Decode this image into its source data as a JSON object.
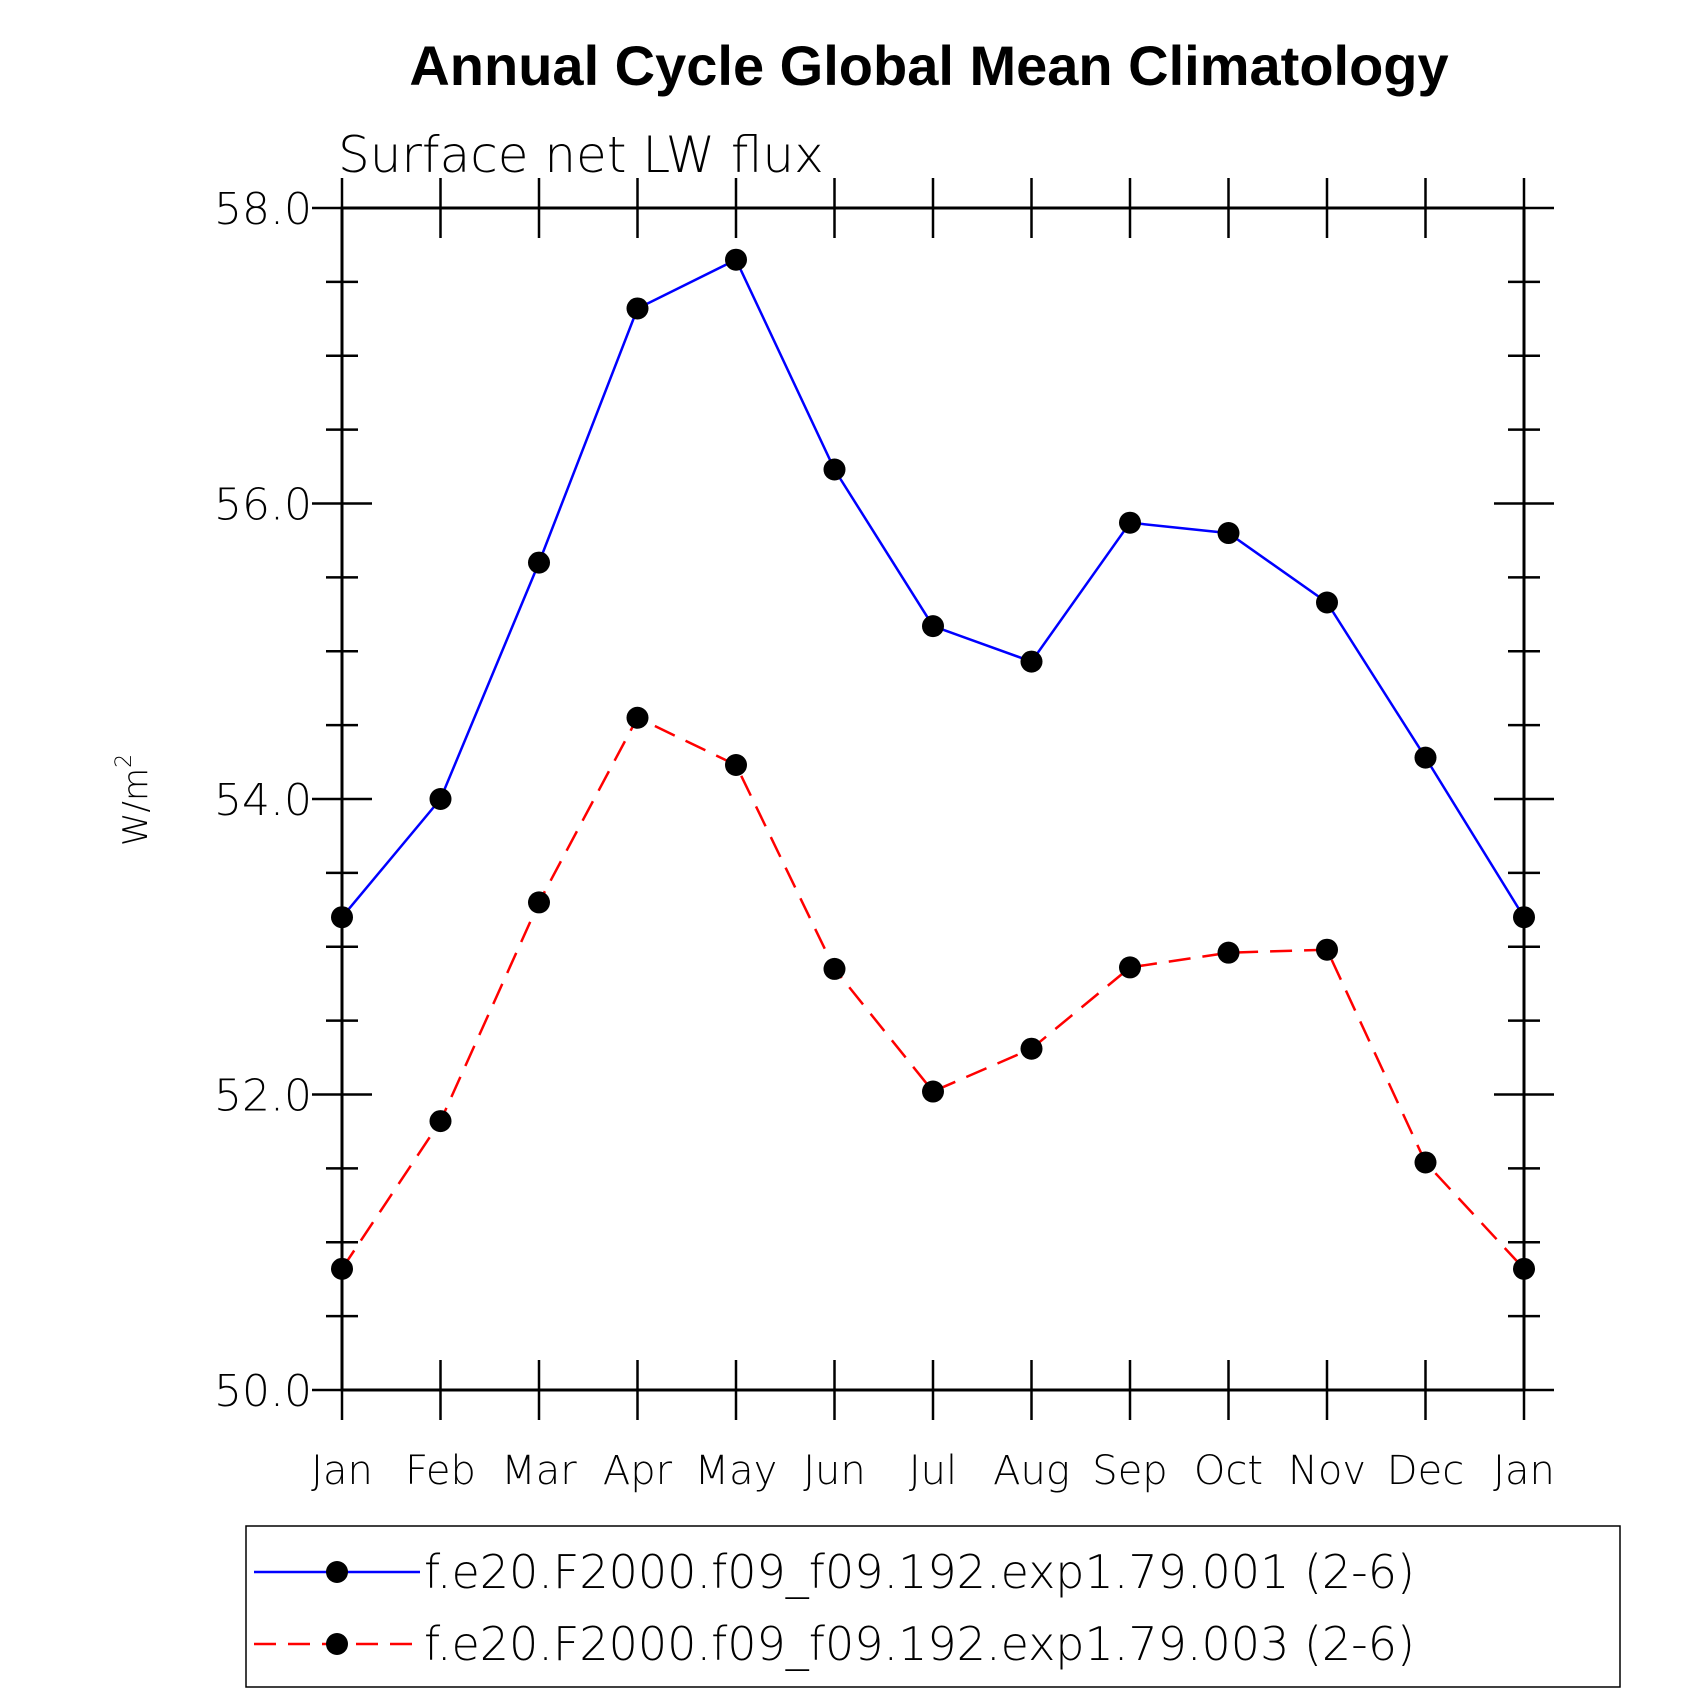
{
  "chart_data": {
    "type": "line",
    "title": "Annual Cycle Global Mean Climatology",
    "subtitle": "Surface net LW flux",
    "ylabel": "W/m",
    "ylabel_superscript": "2",
    "ylim": [
      50.0,
      58.0
    ],
    "yticks": [
      "50.0",
      "52.0",
      "54.0",
      "56.0",
      "58.0"
    ],
    "categories": [
      "Jan",
      "Feb",
      "Mar",
      "Apr",
      "May",
      "Jun",
      "Jul",
      "Aug",
      "Sep",
      "Oct",
      "Nov",
      "Dec",
      "Jan"
    ],
    "series": [
      {
        "name": "f.e20.F2000.f09_f09.192.exp1.79.001 (2-6)",
        "color": "#0000ff",
        "style": "solid",
        "values": [
          53.2,
          54.0,
          55.6,
          57.32,
          57.65,
          56.23,
          55.17,
          54.93,
          55.87,
          55.8,
          55.33,
          54.28,
          53.2
        ]
      },
      {
        "name": "f.e20.F2000.f09_f09.192.exp1.79.003 (2-6)",
        "color": "#ff0000",
        "style": "dashed",
        "values": [
          50.82,
          51.82,
          53.3,
          54.55,
          54.23,
          52.85,
          52.02,
          52.31,
          52.86,
          52.96,
          52.98,
          51.54,
          50.82
        ]
      }
    ],
    "legend_position": "bottom",
    "marker": "filled-circle"
  }
}
